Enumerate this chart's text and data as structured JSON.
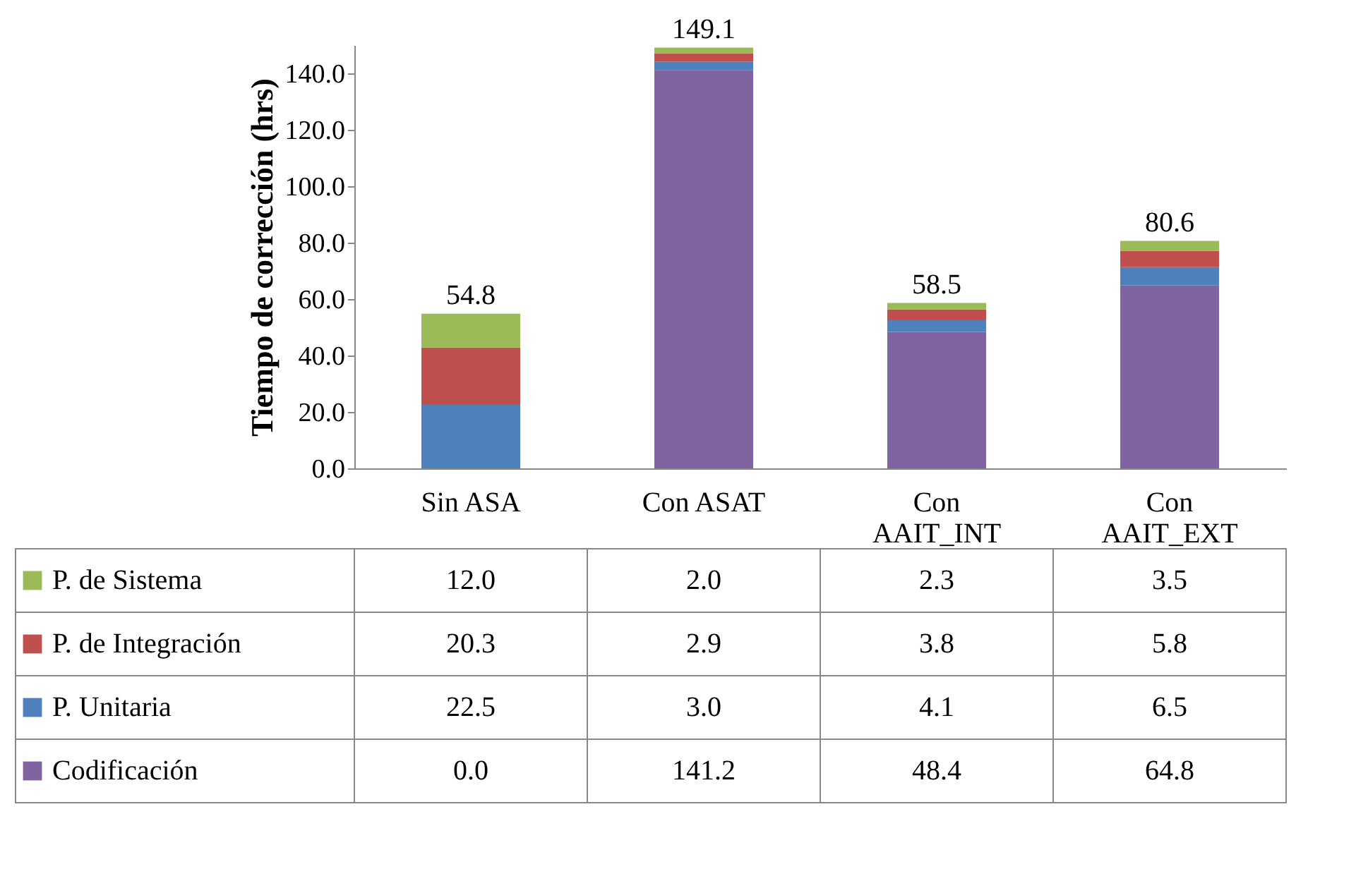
{
  "chart_data": {
    "type": "bar",
    "stacked": true,
    "ylabel": "Tiempo de corrección (hrs)",
    "categories": [
      "Sin ASA",
      "Con ASAT",
      "Con AAIT_INT",
      "Con AAIT_EXT"
    ],
    "series": [
      {
        "name": "Codificación",
        "color": "#8064a2",
        "values": [
          0.0,
          141.2,
          48.4,
          64.8
        ],
        "value_labels": [
          "0.0",
          "141.2",
          "48.4",
          "64.8"
        ]
      },
      {
        "name": "P. Unitaria",
        "color": "#4f81bd",
        "values": [
          22.5,
          3.0,
          4.1,
          6.5
        ],
        "value_labels": [
          "22.5",
          "3.0",
          "4.1",
          "6.5"
        ]
      },
      {
        "name": "P. de Integración",
        "color": "#c0504d",
        "values": [
          20.3,
          2.9,
          3.8,
          5.8
        ],
        "value_labels": [
          "20.3",
          "2.9",
          "3.8",
          "5.8"
        ]
      },
      {
        "name": "P. de Sistema",
        "color": "#9bbb59",
        "values": [
          12.0,
          2.0,
          2.3,
          3.5
        ],
        "value_labels": [
          "12.0",
          "2.0",
          "2.3",
          "3.5"
        ]
      }
    ],
    "totals": [
      "54.8",
      "149.1",
      "58.5",
      "80.6"
    ],
    "ylim": [
      0,
      150
    ],
    "yticks": [
      {
        "value": 0,
        "label": "0.0"
      },
      {
        "value": 20,
        "label": "20.0"
      },
      {
        "value": 40,
        "label": "40.0"
      },
      {
        "value": 60,
        "label": "60.0"
      },
      {
        "value": 80,
        "label": "80.0"
      },
      {
        "value": 100,
        "label": "100.0"
      },
      {
        "value": 120,
        "label": "120.0"
      },
      {
        "value": 140,
        "label": "140.0"
      }
    ],
    "legend": "bottom",
    "grid": false
  }
}
